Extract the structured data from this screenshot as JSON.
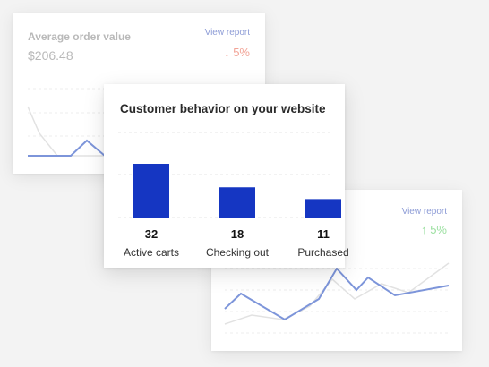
{
  "aov_card": {
    "title": "Average order value",
    "value": "$206.48",
    "view_report": "View report",
    "change": "5%",
    "change_direction": "down",
    "change_color": "#f2a396"
  },
  "right_card": {
    "view_report": "View report",
    "change": "5%",
    "change_direction": "up",
    "change_color": "#9adf9f"
  },
  "behavior_card": {
    "title": "Customer behavior on your website",
    "bar_color": "#1536c2",
    "chart_data": {
      "type": "bar",
      "categories": [
        "Active carts",
        "Checking out",
        "Purchased"
      ],
      "values": [
        32,
        18,
        11
      ]
    }
  },
  "arrows": {
    "down": "↓",
    "up": "↑"
  }
}
